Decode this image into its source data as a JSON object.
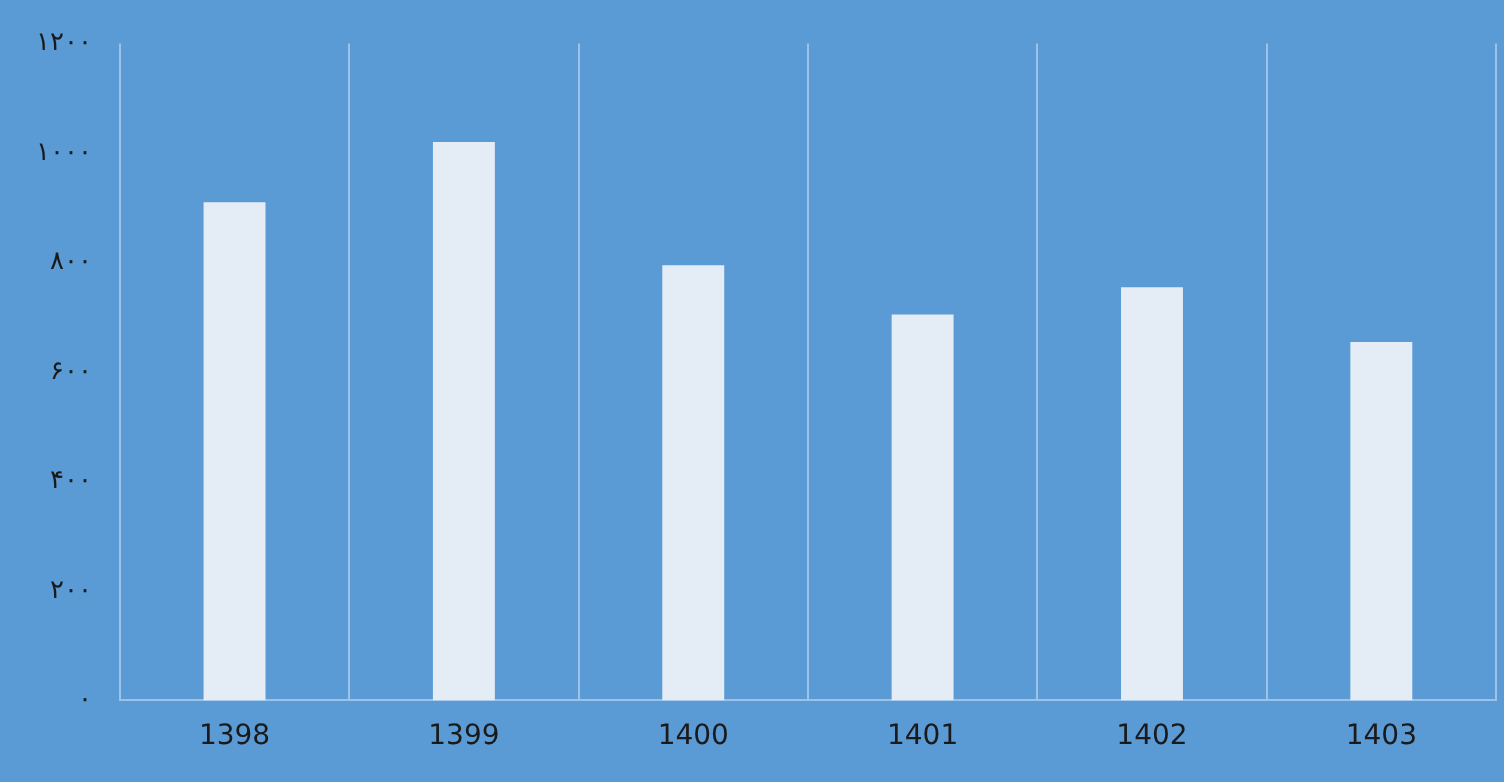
{
  "chart_data": {
    "type": "bar",
    "categories": [
      "1398",
      "1399",
      "1400",
      "1401",
      "1402",
      "1403"
    ],
    "values": [
      910,
      1020,
      795,
      705,
      755,
      655
    ],
    "color": "#e4ecf5",
    "ylim": [
      0,
      1200
    ],
    "yticks": [
      {
        "value": 0,
        "label": "۰"
      },
      {
        "value": 200,
        "label": "۲۰۰"
      },
      {
        "value": 400,
        "label": "۴۰۰"
      },
      {
        "value": 600,
        "label": "۶۰۰"
      },
      {
        "value": 800,
        "label": "۸۰۰"
      },
      {
        "value": 1000,
        "label": "۱۰۰۰"
      },
      {
        "value": 1200,
        "label": "۱۲۰۰"
      }
    ],
    "grid": "x"
  }
}
